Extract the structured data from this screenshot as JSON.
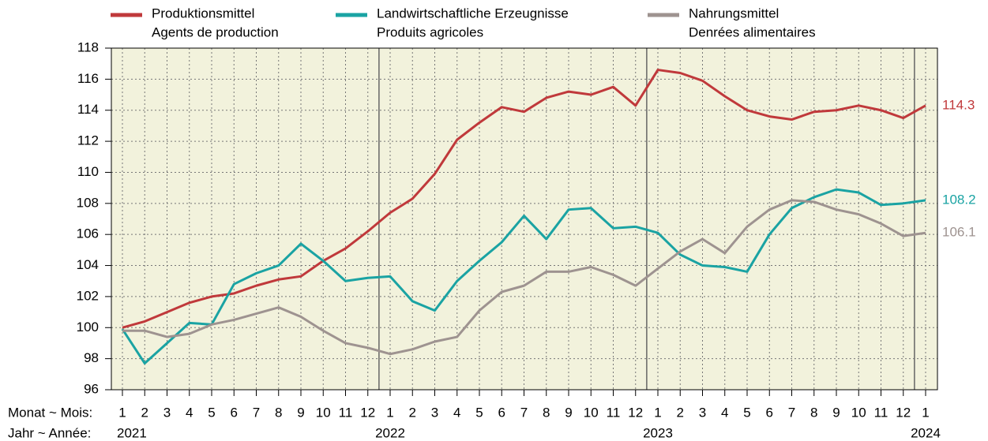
{
  "chart_data": {
    "type": "line",
    "x_label": "Monat ~ Mois:",
    "group_label": "Jahr ~ Année:",
    "categories": [
      "1",
      "2",
      "3",
      "4",
      "5",
      "6",
      "7",
      "8",
      "9",
      "10",
      "11",
      "12",
      "1",
      "2",
      "3",
      "4",
      "5",
      "6",
      "7",
      "8",
      "9",
      "10",
      "11",
      "12",
      "1",
      "2",
      "3",
      "4",
      "5",
      "6",
      "7",
      "8",
      "9",
      "10",
      "11",
      "12",
      "1"
    ],
    "groups": [
      {
        "label": "2021",
        "start": 0
      },
      {
        "label": "2022",
        "start": 12
      },
      {
        "label": "2023",
        "start": 24
      },
      {
        "label": "2024",
        "start": 36
      }
    ],
    "ylim": [
      96,
      118
    ],
    "yticks": [
      96,
      98,
      100,
      102,
      104,
      106,
      108,
      110,
      112,
      114,
      116,
      118
    ],
    "grid": true,
    "background": "#f2f2dc",
    "series": [
      {
        "name": "Produktionsmittel",
        "name2": "Agents de production",
        "color": "#c0393b",
        "values": [
          100.0,
          100.4,
          101.0,
          101.6,
          102.0,
          102.2,
          102.7,
          103.1,
          103.3,
          104.3,
          105.1,
          106.2,
          107.4,
          108.3,
          109.9,
          112.1,
          113.2,
          114.2,
          113.9,
          114.8,
          115.2,
          115.0,
          115.5,
          114.3,
          116.6,
          116.4,
          115.9,
          114.9,
          114.0,
          113.6,
          113.4,
          113.9,
          114.0,
          114.3,
          114.0,
          113.5,
          114.3
        ]
      },
      {
        "name": "Landwirtschaftliche Erzeugnisse",
        "name2": "Produits agricoles",
        "color": "#1aa3a3",
        "values": [
          99.9,
          97.7,
          99.0,
          100.3,
          100.2,
          102.8,
          103.5,
          104.0,
          105.4,
          104.3,
          103.0,
          103.2,
          103.3,
          101.7,
          101.1,
          103.0,
          104.3,
          105.5,
          107.2,
          105.7,
          107.6,
          107.7,
          106.4,
          106.5,
          106.1,
          104.7,
          104.0,
          103.9,
          103.6,
          106.0,
          107.7,
          108.4,
          108.9,
          108.7,
          107.9,
          108.0,
          108.2
        ]
      },
      {
        "name": "Nahrungsmittel",
        "name2": "Denrées alimentaires",
        "color": "#9e9390",
        "values": [
          99.8,
          99.8,
          99.4,
          99.6,
          100.2,
          100.5,
          100.9,
          101.3,
          100.7,
          99.8,
          99.0,
          98.7,
          98.3,
          98.6,
          99.1,
          99.4,
          101.1,
          102.3,
          102.7,
          103.6,
          103.6,
          103.9,
          103.4,
          102.7,
          103.8,
          104.9,
          105.7,
          104.8,
          106.5,
          107.6,
          108.2,
          108.1,
          107.6,
          107.3,
          106.7,
          105.9,
          106.1
        ]
      }
    ]
  }
}
